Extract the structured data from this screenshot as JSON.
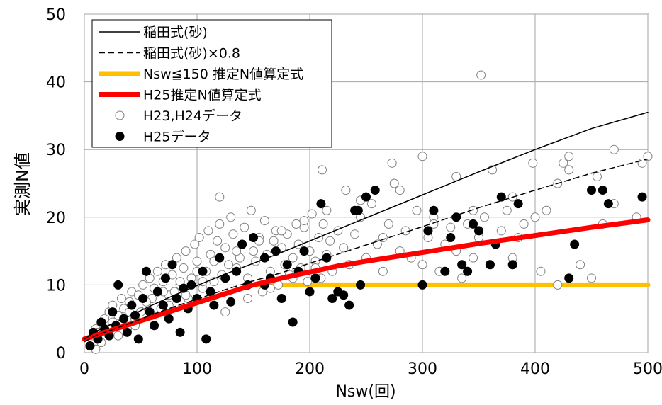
{
  "chart_data": {
    "type": "scatter",
    "title": "",
    "xlabel": "Nsw(回)",
    "ylabel": "実測N値",
    "xlim": [
      0,
      500
    ],
    "ylim": [
      0,
      50
    ],
    "x_ticks": [
      "0",
      "100",
      "200",
      "300",
      "400",
      "500"
    ],
    "y_ticks": [
      "0",
      "10",
      "20",
      "30",
      "40",
      "50"
    ],
    "grid": true,
    "legend_position": "top-left",
    "legend": [
      {
        "label": "稲田式(砂)",
        "style": "line-solid-thin",
        "color": "#000000"
      },
      {
        "label": "稲田式(砂)×0.8",
        "style": "line-dashed-thin",
        "color": "#000000"
      },
      {
        "label": "Nsw≦150 推定N値算定式",
        "style": "line-thick",
        "color": "#FFC000"
      },
      {
        "label": "H25推定N値算定式",
        "style": "line-thick",
        "color": "#FF0000"
      },
      {
        "label": "H23,H24データ",
        "style": "marker-open",
        "color": "#808080"
      },
      {
        "label": "H25データ",
        "style": "marker-filled",
        "color": "#000000"
      }
    ],
    "series": [
      {
        "name": "稲田式(砂)",
        "kind": "line",
        "x": [
          0,
          10,
          20,
          40,
          60,
          80,
          100,
          125,
          150,
          175,
          200,
          250,
          300,
          350,
          400,
          450,
          500
        ],
        "y": [
          2.0,
          3.1,
          3.9,
          5.4,
          7.0,
          8.5,
          9.9,
          11.6,
          13.2,
          14.8,
          16.5,
          19.9,
          23.3,
          26.7,
          30.0,
          33.1,
          35.5
        ]
      },
      {
        "name": "稲田式(砂)×0.8",
        "kind": "line",
        "x": [
          0,
          10,
          20,
          40,
          60,
          80,
          100,
          125,
          150,
          175,
          200,
          250,
          300,
          350,
          400,
          450,
          500
        ],
        "y": [
          1.6,
          2.5,
          3.1,
          4.3,
          5.6,
          6.8,
          7.9,
          9.3,
          10.6,
          11.8,
          13.2,
          15.9,
          18.6,
          21.4,
          24.0,
          26.5,
          28.6
        ]
      },
      {
        "name": "Nsw≦150 推定N値算定式",
        "kind": "line",
        "x": [
          0,
          20,
          50,
          80,
          110,
          140,
          150,
          200,
          300,
          400,
          500
        ],
        "y": [
          2.0,
          3.1,
          4.7,
          6.3,
          7.9,
          9.5,
          10.0,
          10.0,
          10.0,
          10.0,
          10.0
        ]
      },
      {
        "name": "H25推定N値算定式",
        "kind": "line",
        "x": [
          0,
          20,
          50,
          80,
          110,
          140,
          150,
          175,
          200,
          225,
          250,
          300,
          350,
          400,
          450,
          500
        ],
        "y": [
          2.0,
          3.1,
          4.7,
          6.3,
          7.9,
          9.5,
          10.0,
          11.0,
          11.9,
          12.8,
          13.5,
          14.8,
          16.1,
          17.3,
          18.5,
          19.6
        ]
      },
      {
        "name": "H23,H24データ",
        "kind": "scatter",
        "x": [
          5,
          8,
          10,
          12,
          15,
          18,
          20,
          22,
          25,
          28,
          30,
          33,
          35,
          38,
          40,
          42,
          45,
          48,
          50,
          52,
          55,
          58,
          60,
          62,
          65,
          68,
          70,
          72,
          75,
          78,
          80,
          82,
          85,
          88,
          90,
          92,
          95,
          98,
          100,
          102,
          105,
          108,
          110,
          112,
          115,
          118,
          120,
          122,
          125,
          128,
          130,
          132,
          135,
          138,
          140,
          142,
          145,
          148,
          150,
          152,
          155,
          158,
          160,
          162,
          165,
          168,
          170,
          172,
          175,
          178,
          180,
          182,
          185,
          188,
          190,
          192,
          195,
          198,
          200,
          202,
          205,
          208,
          210,
          212,
          215,
          218,
          220,
          225,
          230,
          235,
          240,
          245,
          250,
          255,
          260,
          265,
          270,
          275,
          280,
          285,
          290,
          295,
          300,
          305,
          310,
          315,
          320,
          325,
          330,
          335,
          340,
          345,
          350,
          355,
          360,
          365,
          370,
          375,
          380,
          385,
          390,
          400,
          405,
          410,
          420,
          425,
          430,
          440,
          450,
          460,
          470,
          490,
          495,
          500,
          352,
          300,
          273,
          232,
          211,
          120,
          10,
          15,
          30,
          45,
          60,
          75,
          90,
          105,
          125,
          145,
          165,
          185,
          205,
          230,
          265,
          310,
          345,
          380,
          420,
          455,
          12,
          25,
          40,
          55,
          70,
          85,
          100,
          115,
          135,
          155,
          175,
          195,
          215,
          245,
          280,
          330,
          362,
          398,
          430,
          470
        ],
        "y": [
          1.0,
          2.5,
          3.5,
          2.0,
          4.5,
          5.0,
          3.0,
          6.0,
          7.0,
          4.0,
          5.5,
          8.0,
          6.5,
          3.5,
          7.5,
          9.0,
          5.0,
          8.5,
          6.0,
          10.0,
          7.0,
          11.0,
          8.0,
          9.5,
          12.0,
          6.5,
          10.5,
          13.0,
          8.5,
          11.5,
          9.0,
          14.0,
          10.0,
          12.5,
          15.0,
          8.0,
          11.0,
          16.0,
          13.5,
          17.0,
          9.5,
          12.0,
          18.0,
          14.5,
          10.5,
          16.5,
          19.0,
          11.5,
          15.5,
          13.0,
          20.0,
          17.5,
          12.5,
          14.0,
          16.0,
          18.5,
          11.0,
          21.0,
          15.0,
          13.5,
          17.0,
          9.0,
          19.5,
          14.5,
          12.0,
          16.5,
          18.0,
          10.0,
          15.5,
          13.0,
          17.5,
          11.5,
          14.0,
          19.0,
          16.0,
          12.5,
          18.5,
          10.5,
          15.0,
          20.5,
          13.5,
          17.0,
          11.0,
          19.0,
          14.5,
          16.5,
          12.0,
          18.0,
          15.5,
          13.0,
          17.5,
          20.0,
          14.0,
          22.0,
          16.0,
          12.0,
          19.0,
          25.0,
          15.0,
          18.0,
          14.0,
          21.0,
          13.0,
          17.0,
          20.0,
          12.0,
          16.0,
          18.5,
          15.0,
          11.0,
          19.0,
          14.0,
          17.0,
          20.0,
          13.0,
          16.0,
          18.0,
          21.0,
          14.0,
          17.0,
          19.0,
          20.0,
          12.0,
          21.0,
          10.0,
          28.0,
          27.0,
          13.0,
          11.0,
          19.0,
          22.0,
          20.0,
          28.0,
          29.0,
          41.0,
          29.0,
          28.0,
          24.0,
          27.0,
          23.0,
          0.5,
          1.5,
          2.5,
          4.0,
          5.5,
          7.0,
          8.5,
          10.5,
          6.0,
          8.0,
          9.5,
          11.0,
          12.5,
          15.5,
          17.0,
          19.0,
          21.0,
          23.0,
          25.0,
          26.0,
          3.0,
          4.5,
          6.0,
          7.5,
          9.0,
          10.5,
          12.0,
          13.5,
          15.0,
          16.5,
          18.0,
          19.5,
          21.0,
          22.5,
          24.0,
          26.0,
          27.0,
          28.0,
          29.0,
          30.0
        ]
      },
      {
        "name": "H25データ",
        "kind": "scatter",
        "x": [
          5,
          8,
          12,
          15,
          18,
          22,
          25,
          28,
          30,
          35,
          38,
          42,
          45,
          48,
          52,
          55,
          58,
          62,
          65,
          70,
          72,
          75,
          78,
          82,
          85,
          88,
          92,
          95,
          100,
          105,
          108,
          112,
          115,
          120,
          125,
          130,
          135,
          140,
          145,
          150,
          160,
          165,
          170,
          180,
          185,
          190,
          200,
          205,
          210,
          215,
          225,
          230,
          235,
          240,
          245,
          250,
          300,
          305,
          310,
          320,
          325,
          330,
          335,
          340,
          345,
          350,
          360,
          365,
          370,
          380,
          385,
          430,
          435,
          450,
          460,
          465,
          495,
          160,
          175,
          195,
          220,
          243,
          258
        ],
        "y": [
          1.0,
          3.0,
          2.0,
          4.5,
          3.5,
          2.5,
          6.0,
          4.0,
          10.0,
          5.0,
          3.0,
          7.0,
          5.5,
          2.0,
          8.0,
          12.0,
          6.0,
          4.0,
          9.0,
          7.0,
          11.0,
          5.0,
          13.0,
          8.0,
          3.0,
          9.5,
          6.5,
          10.0,
          8.0,
          12.0,
          2.0,
          9.0,
          7.0,
          14.0,
          11.0,
          7.5,
          12.0,
          16.0,
          10.0,
          17.0,
          14.0,
          11.0,
          15.0,
          13.0,
          4.5,
          12.0,
          9.0,
          11.0,
          22.0,
          14.0,
          9.0,
          8.5,
          7.0,
          21.0,
          10.0,
          23.0,
          10.0,
          18.0,
          21.0,
          12.0,
          17.0,
          20.0,
          13.0,
          12.0,
          19.0,
          18.0,
          13.0,
          16.0,
          23.0,
          13.0,
          22.0,
          11.0,
          16.0,
          24.0,
          24.0,
          22.0,
          23.0,
          10.0,
          8.0,
          15.0,
          8.0,
          21.0,
          24.0
        ]
      }
    ]
  }
}
